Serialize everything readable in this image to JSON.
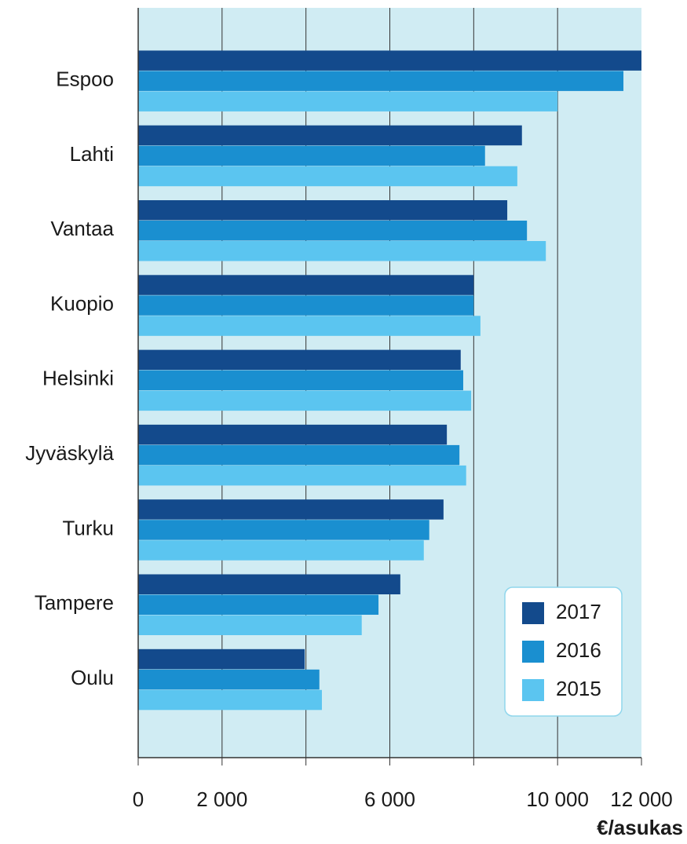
{
  "chart_data": {
    "type": "hbar",
    "categories": [
      "Espoo",
      "Lahti",
      "Vantaa",
      "Kuopio",
      "Helsinki",
      "Jyväskylä",
      "Turku",
      "Tampere",
      "Oulu"
    ],
    "series": [
      {
        "name": "2017",
        "color": "#134a8c",
        "values": [
          12000,
          9150,
          8800,
          8000,
          7690,
          7360,
          7280,
          6250,
          3970
        ]
      },
      {
        "name": "2016",
        "color": "#1a8fd0",
        "values": [
          11570,
          8270,
          9270,
          8000,
          7750,
          7660,
          6940,
          5730,
          4320
        ]
      },
      {
        "name": "2015",
        "color": "#5bc5f0",
        "values": [
          10000,
          9040,
          9720,
          8160,
          7940,
          7820,
          6810,
          5330,
          4380
        ]
      }
    ],
    "xlabel": "€/asukas",
    "xlim": [
      0,
      12000
    ],
    "xticks": [
      0,
      {
        "value": 2000,
        "label": "2 000"
      },
      {
        "value": 4000,
        "label": null
      },
      {
        "value": 6000,
        "label": "6 000"
      },
      {
        "value": 8000,
        "label": null
      },
      {
        "value": 10000,
        "label": "10 000"
      },
      {
        "value": 12000,
        "label": "12 000"
      }
    ],
    "grid": true,
    "legend": "lower right",
    "background": "#d0ecf3"
  }
}
